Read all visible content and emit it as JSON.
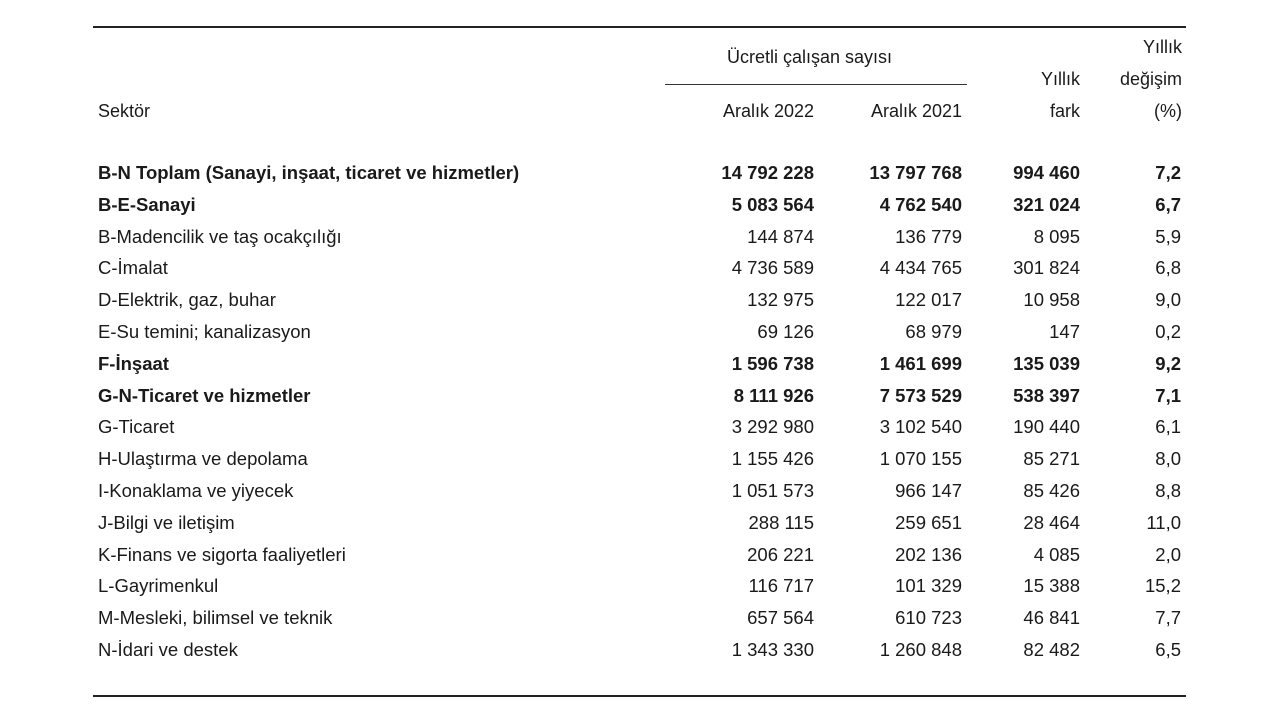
{
  "header": {
    "sector_label": "Sektör",
    "group_label": "Ücretli çalışan sayısı",
    "col_2022": "Aralık 2022",
    "col_2021": "Aralık 2021",
    "fark_line1": "Yıllık",
    "fark_line2": "fark",
    "pct_line1": "Yıllık",
    "pct_line2": "değişim",
    "pct_line3": "(%)"
  },
  "rows": [
    {
      "sector": "B-N Toplam (Sanayi, inşaat, ticaret ve hizmetler)",
      "v2022": "14 792 228",
      "v2021": "13 797 768",
      "fark": "994 460",
      "pct": "7,2",
      "bold": true
    },
    {
      "sector": "B-E-Sanayi",
      "v2022": "5 083 564",
      "v2021": "4 762 540",
      "fark": "321 024",
      "pct": "6,7",
      "bold": true
    },
    {
      "sector": "B-Madencilik ve taş ocakçılığı",
      "v2022": "144 874",
      "v2021": "136 779",
      "fark": "8 095",
      "pct": "5,9",
      "bold": false
    },
    {
      "sector": "C-İmalat",
      "v2022": "4 736 589",
      "v2021": "4 434 765",
      "fark": "301 824",
      "pct": "6,8",
      "bold": false
    },
    {
      "sector": "D-Elektrik, gaz, buhar",
      "v2022": "132 975",
      "v2021": "122 017",
      "fark": "10 958",
      "pct": "9,0",
      "bold": false
    },
    {
      "sector": "E-Su temini; kanalizasyon",
      "v2022": "69 126",
      "v2021": "68 979",
      "fark": "147",
      "pct": "0,2",
      "bold": false
    },
    {
      "sector": "F-İnşaat",
      "v2022": "1 596 738",
      "v2021": "1 461 699",
      "fark": "135 039",
      "pct": "9,2",
      "bold": true
    },
    {
      "sector": "G-N-Ticaret ve hizmetler",
      "v2022": "8 111 926",
      "v2021": "7 573 529",
      "fark": "538 397",
      "pct": "7,1",
      "bold": true
    },
    {
      "sector": "G-Ticaret",
      "v2022": "3 292 980",
      "v2021": "3 102 540",
      "fark": "190 440",
      "pct": "6,1",
      "bold": false
    },
    {
      "sector": "H-Ulaştırma ve depolama",
      "v2022": "1 155 426",
      "v2021": "1 070 155",
      "fark": "85 271",
      "pct": "8,0",
      "bold": false
    },
    {
      "sector": "I-Konaklama ve yiyecek",
      "v2022": "1 051 573",
      "v2021": "966 147",
      "fark": "85 426",
      "pct": "8,8",
      "bold": false
    },
    {
      "sector": "J-Bilgi ve iletişim",
      "v2022": "288 115",
      "v2021": "259 651",
      "fark": "28 464",
      "pct": "11,0",
      "bold": false
    },
    {
      "sector": "K-Finans ve sigorta faaliyetleri",
      "v2022": "206 221",
      "v2021": "202 136",
      "fark": "4 085",
      "pct": "2,0",
      "bold": false
    },
    {
      "sector": "L-Gayrimenkul",
      "v2022": "116 717",
      "v2021": "101 329",
      "fark": "15 388",
      "pct": "15,2",
      "bold": false
    },
    {
      "sector": "M-Mesleki, bilimsel ve teknik",
      "v2022": "657 564",
      "v2021": "610 723",
      "fark": "46 841",
      "pct": "7,7",
      "bold": false
    },
    {
      "sector": "N-İdari ve destek",
      "v2022": "1 343 330",
      "v2021": "1 260 848",
      "fark": "82 482",
      "pct": "6,5",
      "bold": false
    }
  ]
}
